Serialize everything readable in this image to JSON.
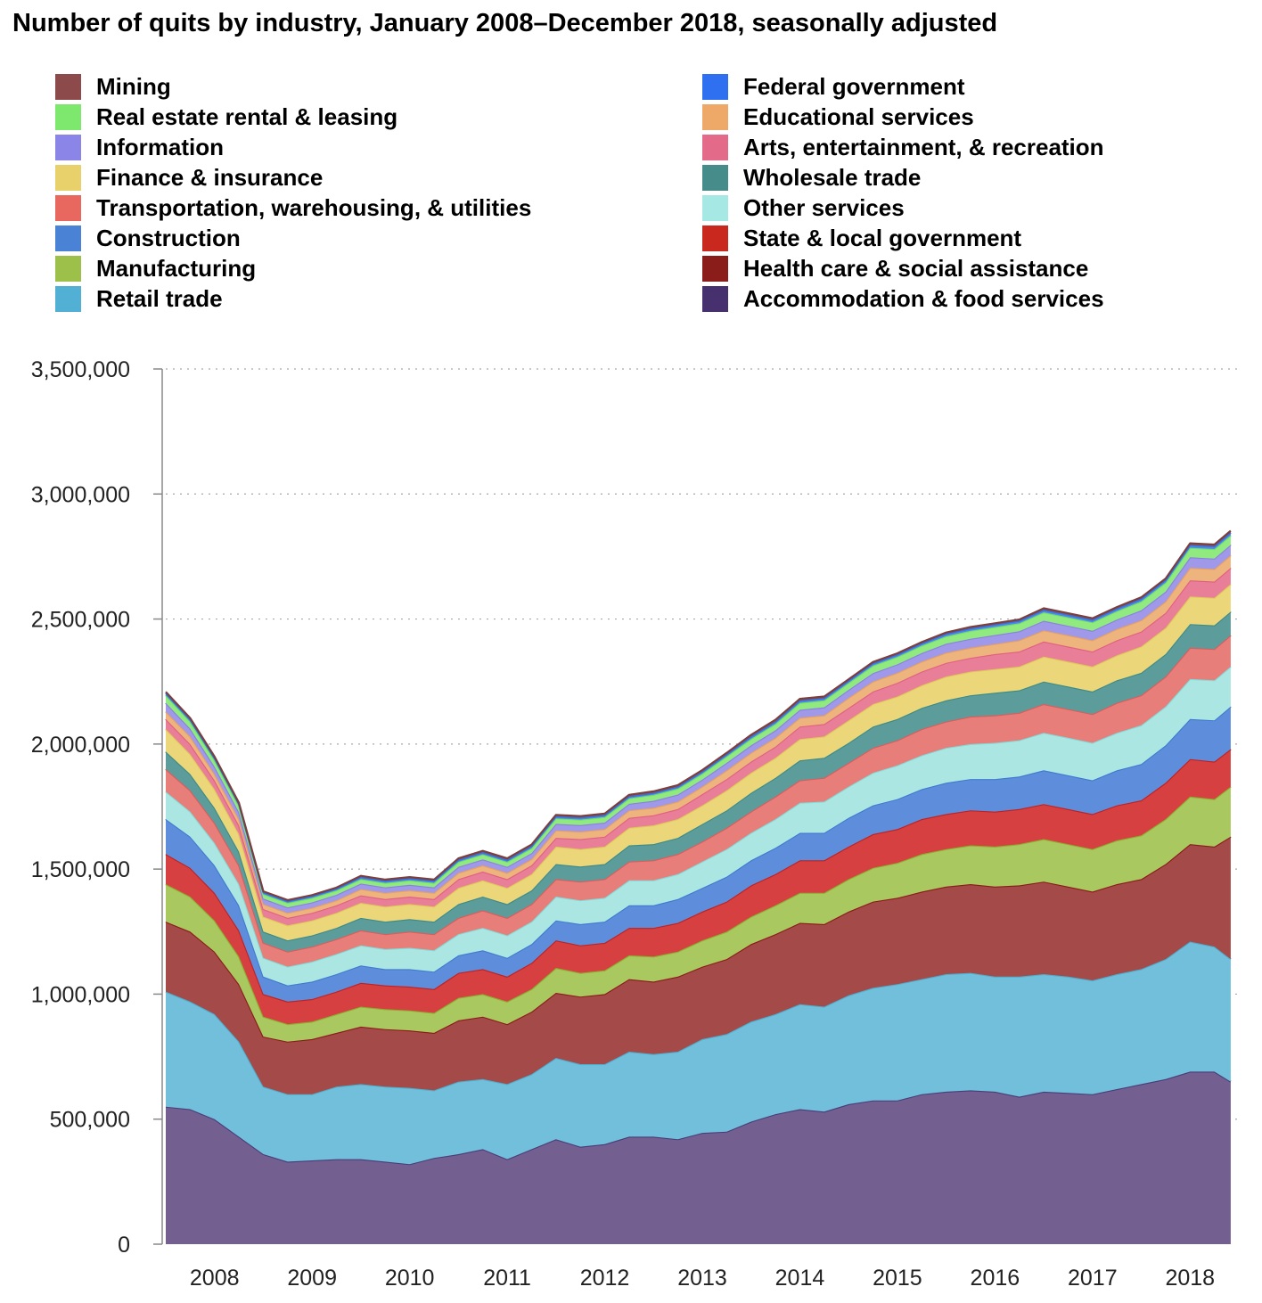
{
  "chart_data": {
    "type": "area",
    "stacked": true,
    "title": "Number of quits by industry, January 2008–December 2018, seasonally adjusted",
    "xlabel": "",
    "ylabel": "",
    "ylim": [
      0,
      3500000
    ],
    "yticks": [
      0,
      500000,
      1000000,
      1500000,
      2000000,
      2500000,
      3000000,
      3500000
    ],
    "ytick_labels": [
      "0",
      "500,000",
      "1,000,000",
      "1,500,000",
      "2,000,000",
      "2,500,000",
      "3,000,000",
      "3,500,000"
    ],
    "xlim": [
      2008.0,
      2019.0
    ],
    "xtick_labels": [
      "2008",
      "2009",
      "2010",
      "2011",
      "2012",
      "2013",
      "2014",
      "2015",
      "2016",
      "2017",
      "2018"
    ],
    "grid": true,
    "legend_location": "top",
    "x": [
      2008.0,
      2008.25,
      2008.5,
      2008.75,
      2009.0,
      2009.25,
      2009.5,
      2009.75,
      2010.0,
      2010.25,
      2010.5,
      2010.75,
      2011.0,
      2011.25,
      2011.5,
      2011.75,
      2012.0,
      2012.25,
      2012.5,
      2012.75,
      2013.0,
      2013.25,
      2013.5,
      2013.75,
      2014.0,
      2014.25,
      2014.5,
      2014.75,
      2015.0,
      2015.25,
      2015.5,
      2015.75,
      2016.0,
      2016.25,
      2016.5,
      2016.75,
      2017.0,
      2017.25,
      2017.5,
      2017.75,
      2018.0,
      2018.25,
      2018.5,
      2018.75,
      2018.917
    ],
    "series": [
      {
        "name": "Accommodation & food services",
        "color": "#4a3c78",
        "fill": "#736090",
        "values": [
          550000,
          540000,
          500000,
          430000,
          360000,
          330000,
          335000,
          340000,
          340000,
          330000,
          320000,
          345000,
          360000,
          380000,
          340000,
          380000,
          420000,
          390000,
          400000,
          430000,
          430000,
          420000,
          445000,
          450000,
          490000,
          520000,
          540000,
          530000,
          560000,
          575000,
          575000,
          600000,
          610000,
          615000,
          610000,
          590000,
          610000,
          605000,
          600000,
          620000,
          640000,
          660000,
          690000,
          690000,
          650000
        ]
      },
      {
        "name": "Retail trade",
        "color": "#4ab0d0",
        "fill": "#72bfdb",
        "values": [
          460000,
          430000,
          420000,
          380000,
          270000,
          270000,
          265000,
          290000,
          300000,
          300000,
          305000,
          270000,
          290000,
          280000,
          300000,
          300000,
          325000,
          330000,
          320000,
          340000,
          330000,
          350000,
          375000,
          390000,
          400000,
          400000,
          420000,
          420000,
          435000,
          450000,
          465000,
          460000,
          470000,
          470000,
          460000,
          480000,
          470000,
          465000,
          455000,
          460000,
          460000,
          480000,
          520000,
          500000,
          490000
        ]
      },
      {
        "name": "Health care & social assistance",
        "color": "#8b1a1a",
        "fill": "#a44a48",
        "values": [
          280000,
          280000,
          250000,
          230000,
          200000,
          210000,
          220000,
          215000,
          230000,
          230000,
          230000,
          230000,
          245000,
          250000,
          240000,
          250000,
          260000,
          270000,
          280000,
          290000,
          290000,
          300000,
          290000,
          300000,
          310000,
          320000,
          325000,
          330000,
          335000,
          345000,
          345000,
          350000,
          350000,
          355000,
          360000,
          365000,
          370000,
          360000,
          355000,
          360000,
          360000,
          380000,
          390000,
          400000,
          490000
        ]
      },
      {
        "name": "Manufacturing",
        "color": "#8ab030",
        "fill": "#a9c860",
        "values": [
          150000,
          140000,
          125000,
          110000,
          80000,
          70000,
          70000,
          75000,
          80000,
          80000,
          80000,
          80000,
          90000,
          90000,
          90000,
          90000,
          100000,
          95000,
          95000,
          95000,
          100000,
          100000,
          105000,
          110000,
          110000,
          115000,
          120000,
          125000,
          130000,
          135000,
          140000,
          150000,
          150000,
          155000,
          160000,
          165000,
          170000,
          170000,
          170000,
          175000,
          175000,
          180000,
          190000,
          190000,
          200000
        ]
      },
      {
        "name": "State & local government",
        "color": "#c02020",
        "fill": "#d64040",
        "values": [
          120000,
          115000,
          110000,
          105000,
          90000,
          90000,
          90000,
          90000,
          95000,
          95000,
          95000,
          95000,
          100000,
          100000,
          100000,
          105000,
          110000,
          110000,
          110000,
          110000,
          115000,
          115000,
          115000,
          120000,
          125000,
          125000,
          130000,
          130000,
          130000,
          135000,
          135000,
          140000,
          140000,
          140000,
          140000,
          140000,
          140000,
          140000,
          140000,
          140000,
          140000,
          145000,
          150000,
          150000,
          150000
        ]
      },
      {
        "name": "Construction",
        "color": "#3e7ad0",
        "fill": "#5e8edb",
        "values": [
          140000,
          125000,
          110000,
          100000,
          70000,
          65000,
          70000,
          70000,
          70000,
          65000,
          70000,
          70000,
          70000,
          75000,
          75000,
          75000,
          80000,
          85000,
          85000,
          90000,
          90000,
          95000,
          95000,
          100000,
          100000,
          105000,
          110000,
          110000,
          115000,
          115000,
          120000,
          120000,
          125000,
          125000,
          130000,
          130000,
          135000,
          135000,
          135000,
          140000,
          145000,
          150000,
          160000,
          165000,
          170000
        ]
      },
      {
        "name": "Other services",
        "color": "#80dcd8",
        "fill": "#ace6e2",
        "values": [
          110000,
          100000,
          90000,
          85000,
          75000,
          75000,
          80000,
          80000,
          80000,
          80000,
          85000,
          85000,
          85000,
          90000,
          90000,
          90000,
          95000,
          95000,
          95000,
          100000,
          100000,
          100000,
          105000,
          110000,
          110000,
          115000,
          120000,
          125000,
          125000,
          130000,
          135000,
          135000,
          140000,
          140000,
          145000,
          145000,
          150000,
          150000,
          150000,
          150000,
          155000,
          155000,
          160000,
          160000,
          160000
        ]
      },
      {
        "name": "Transportation, warehousing, & utilities",
        "color": "#e05a5a",
        "fill": "#e77e7a",
        "values": [
          90000,
          85000,
          80000,
          75000,
          60000,
          60000,
          60000,
          60000,
          60000,
          60000,
          65000,
          65000,
          65000,
          70000,
          70000,
          70000,
          70000,
          75000,
          75000,
          75000,
          80000,
          80000,
          80000,
          85000,
          85000,
          90000,
          90000,
          95000,
          95000,
          100000,
          100000,
          105000,
          105000,
          110000,
          110000,
          110000,
          115000,
          115000,
          115000,
          120000,
          120000,
          120000,
          125000,
          125000,
          125000
        ]
      },
      {
        "name": "Wholesale trade",
        "color": "#3c8a88",
        "fill": "#5c9c9a",
        "values": [
          70000,
          65000,
          60000,
          55000,
          45000,
          45000,
          45000,
          45000,
          50000,
          50000,
          50000,
          50000,
          55000,
          55000,
          55000,
          55000,
          60000,
          60000,
          60000,
          65000,
          65000,
          65000,
          70000,
          70000,
          75000,
          75000,
          80000,
          80000,
          80000,
          85000,
          85000,
          85000,
          85000,
          85000,
          90000,
          90000,
          90000,
          90000,
          90000,
          90000,
          90000,
          90000,
          95000,
          95000,
          95000
        ]
      },
      {
        "name": "Finance & insurance",
        "color": "#e0c858",
        "fill": "#ebd77a",
        "values": [
          90000,
          80000,
          75000,
          70000,
          60000,
          60000,
          60000,
          60000,
          60000,
          60000,
          60000,
          60000,
          65000,
          65000,
          65000,
          65000,
          70000,
          70000,
          70000,
          70000,
          75000,
          75000,
          75000,
          80000,
          80000,
          80000,
          85000,
          85000,
          90000,
          90000,
          90000,
          90000,
          95000,
          95000,
          95000,
          95000,
          100000,
          100000,
          100000,
          100000,
          105000,
          105000,
          110000,
          110000,
          110000
        ]
      },
      {
        "name": "Arts, entertainment, & recreation",
        "color": "#e06080",
        "fill": "#e87e98",
        "values": [
          40000,
          40000,
          35000,
          35000,
          30000,
          30000,
          30000,
          30000,
          30000,
          30000,
          30000,
          30000,
          35000,
          35000,
          35000,
          35000,
          35000,
          40000,
          40000,
          40000,
          40000,
          40000,
          45000,
          45000,
          45000,
          45000,
          50000,
          50000,
          50000,
          50000,
          55000,
          55000,
          55000,
          55000,
          60000,
          60000,
          60000,
          60000,
          60000,
          60000,
          60000,
          60000,
          65000,
          65000,
          65000
        ]
      },
      {
        "name": "Educational services",
        "color": "#e8a060",
        "fill": "#eeb47e",
        "values": [
          30000,
          30000,
          25000,
          25000,
          20000,
          20000,
          20000,
          20000,
          25000,
          25000,
          25000,
          25000,
          25000,
          25000,
          25000,
          25000,
          30000,
          30000,
          30000,
          30000,
          30000,
          30000,
          30000,
          35000,
          35000,
          35000,
          35000,
          35000,
          40000,
          40000,
          40000,
          40000,
          40000,
          40000,
          40000,
          45000,
          45000,
          45000,
          45000,
          45000,
          45000,
          45000,
          50000,
          50000,
          50000
        ]
      },
      {
        "name": "Information",
        "color": "#8a80e0",
        "fill": "#a098e8",
        "values": [
          35000,
          32000,
          30000,
          28000,
          22000,
          22000,
          22000,
          22000,
          22000,
          22000,
          22000,
          22000,
          24000,
          24000,
          24000,
          24000,
          26000,
          26000,
          26000,
          26000,
          28000,
          28000,
          28000,
          30000,
          30000,
          30000,
          32000,
          32000,
          32000,
          34000,
          34000,
          34000,
          36000,
          36000,
          36000,
          36000,
          38000,
          38000,
          38000,
          38000,
          40000,
          40000,
          42000,
          42000,
          42000
        ]
      },
      {
        "name": "Real estate rental & leasing",
        "color": "#70e060",
        "fill": "#90ea80",
        "values": [
          30000,
          28000,
          26000,
          24000,
          18000,
          18000,
          18000,
          18000,
          18000,
          18000,
          18000,
          18000,
          20000,
          20000,
          20000,
          20000,
          22000,
          22000,
          22000,
          22000,
          24000,
          24000,
          24000,
          26000,
          26000,
          26000,
          28000,
          28000,
          28000,
          30000,
          30000,
          30000,
          30000,
          32000,
          32000,
          32000,
          34000,
          34000,
          34000,
          34000,
          36000,
          36000,
          38000,
          38000,
          38000
        ]
      },
      {
        "name": "Federal government",
        "color": "#2f70e8",
        "fill": "#4c86f0",
        "values": [
          8000,
          8000,
          8000,
          8000,
          7000,
          7000,
          7000,
          7000,
          8000,
          8000,
          8000,
          8000,
          8000,
          8000,
          8000,
          8000,
          8000,
          8000,
          8000,
          8000,
          8000,
          8000,
          8000,
          8000,
          9000,
          9000,
          9000,
          9000,
          9000,
          9000,
          9000,
          9000,
          10000,
          10000,
          10000,
          10000,
          10000,
          10000,
          10000,
          10000,
          10000,
          10000,
          11000,
          11000,
          11000
        ]
      },
      {
        "name": "Mining",
        "color": "#7a4040",
        "fill": "#8c5454",
        "values": [
          6000,
          6000,
          6000,
          5000,
          4000,
          4000,
          4000,
          4000,
          5000,
          5000,
          5000,
          5000,
          6000,
          6000,
          6000,
          6000,
          6000,
          6000,
          6000,
          6000,
          6000,
          6000,
          6000,
          6000,
          7000,
          7000,
          7000,
          6000,
          5000,
          5000,
          5000,
          5000,
          5000,
          5000,
          5000,
          5000,
          6000,
          6000,
          6000,
          6000,
          6000,
          6000,
          7000,
          7000,
          7000
        ]
      }
    ]
  },
  "legend": {
    "left": [
      {
        "label": "Mining",
        "color": "#8c4a4a"
      },
      {
        "label": "Real estate rental & leasing",
        "color": "#7ee86e"
      },
      {
        "label": "Information",
        "color": "#8a85e6"
      },
      {
        "label": "Finance & insurance",
        "color": "#e8d06a"
      },
      {
        "label": "Transportation, warehousing, & utilities",
        "color": "#e8685f"
      },
      {
        "label": "Construction",
        "color": "#4a82d6"
      },
      {
        "label": "Manufacturing",
        "color": "#9cc04a"
      },
      {
        "label": "Retail trade",
        "color": "#52b0d4"
      }
    ],
    "right": [
      {
        "label": "Federal government",
        "color": "#2f70f0"
      },
      {
        "label": "Educational services",
        "color": "#eea868"
      },
      {
        "label": "Arts, entertainment, & recreation",
        "color": "#e46a8a"
      },
      {
        "label": "Wholesale trade",
        "color": "#468c8a"
      },
      {
        "label": "Other services",
        "color": "#a6e8e4"
      },
      {
        "label": "State & local government",
        "color": "#c8281e"
      },
      {
        "label": "Health care & social assistance",
        "color": "#8a1c1a"
      },
      {
        "label": "Accommodation & food services",
        "color": "#46306e"
      }
    ]
  }
}
